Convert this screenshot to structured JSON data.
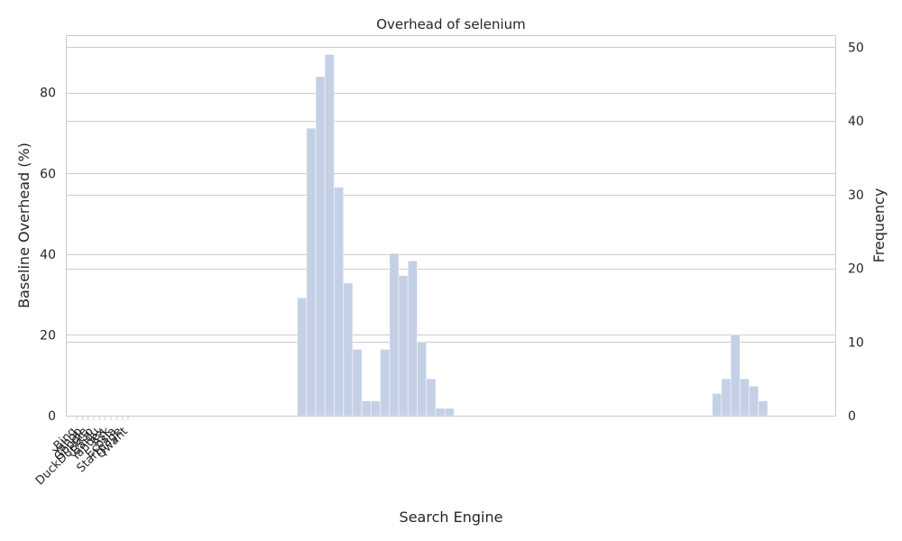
{
  "chart_data": {
    "type": "bar",
    "title": "Overhead of selenium",
    "xlabel": "Search Engine",
    "ylabel": "Baseline Overhead (%)",
    "ylabel_right": "Frequency",
    "ylim": [
      0,
      94
    ],
    "ylim_right": [
      0,
      51.5
    ],
    "yticks": [
      0,
      20,
      40,
      60,
      80
    ],
    "yticks_right": [
      0,
      10,
      20,
      30,
      40,
      50
    ],
    "categories": [
      "Bing",
      "Yahoo",
      "Google",
      "DuckDuckGo",
      "Baidu",
      "Yandex",
      "Ask",
      "Ecosia",
      "Startpage",
      "Qwant"
    ],
    "histogram": {
      "name": "Frequency",
      "color": "#c4d0e6",
      "bins": [
        {
          "x": 30,
          "count": 16
        },
        {
          "x": 31.2,
          "count": 39
        },
        {
          "x": 32.4,
          "count": 46
        },
        {
          "x": 33.6,
          "count": 49
        },
        {
          "x": 34.8,
          "count": 31
        },
        {
          "x": 36,
          "count": 18
        },
        {
          "x": 37.2,
          "count": 9
        },
        {
          "x": 38.4,
          "count": 2
        },
        {
          "x": 39.6,
          "count": 2
        },
        {
          "x": 40.8,
          "count": 9
        },
        {
          "x": 42,
          "count": 22
        },
        {
          "x": 43.2,
          "count": 19
        },
        {
          "x": 44.4,
          "count": 21
        },
        {
          "x": 45.6,
          "count": 10
        },
        {
          "x": 46.8,
          "count": 5
        },
        {
          "x": 48,
          "count": 1
        },
        {
          "x": 49.2,
          "count": 1
        },
        {
          "x": 84,
          "count": 3
        },
        {
          "x": 85.2,
          "count": 5
        },
        {
          "x": 86.4,
          "count": 11
        },
        {
          "x": 87.6,
          "count": 5
        },
        {
          "x": 88.8,
          "count": 4
        },
        {
          "x": 90,
          "count": 2
        }
      ],
      "x_range": [
        0,
        100
      ]
    },
    "grid": true
  }
}
